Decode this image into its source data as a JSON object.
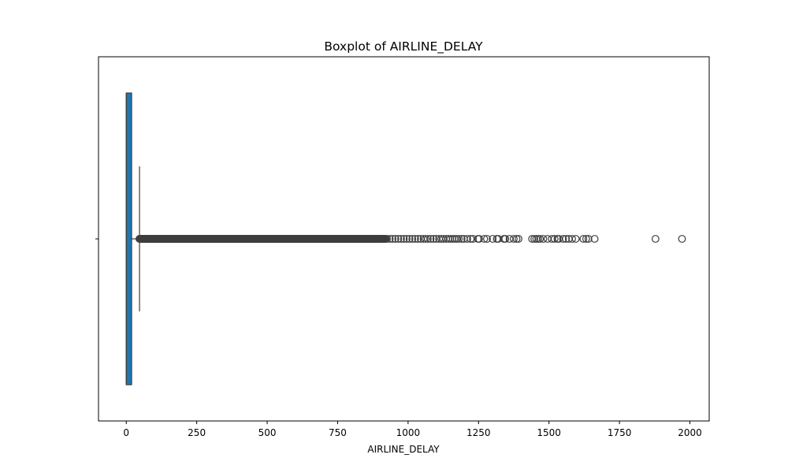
{
  "chart_data": {
    "type": "boxplot",
    "orientation": "horizontal",
    "title": "Boxplot of AIRLINE_DELAY",
    "xlabel": "AIRLINE_DELAY",
    "ylabel": "",
    "xlim": [
      -98.5,
      2068.5
    ],
    "xticks": [
      0,
      250,
      500,
      750,
      1000,
      1250,
      1500,
      1750,
      2000
    ],
    "xtick_labels": [
      "0",
      "250",
      "500",
      "750",
      "1000",
      "1250",
      "1500",
      "1750",
      "2000"
    ],
    "grid": false,
    "box": {
      "min": 0,
      "q1": 0,
      "median": 0,
      "q3": 19,
      "whisker_low": 0,
      "whisker_high": 47
    },
    "outlier_dense_range": [
      47,
      920
    ],
    "outliers": [
      925,
      935,
      945,
      955,
      965,
      975,
      985,
      995,
      1005,
      1015,
      1025,
      1035,
      1045,
      1055,
      1062,
      1070,
      1080,
      1090,
      1100,
      1110,
      1118,
      1125,
      1135,
      1143,
      1150,
      1158,
      1165,
      1172,
      1180,
      1190,
      1198,
      1210,
      1222,
      1230,
      1248,
      1252,
      1270,
      1280,
      1300,
      1315,
      1320,
      1340,
      1345,
      1360,
      1375,
      1385,
      1392,
      1440,
      1448,
      1455,
      1462,
      1468,
      1480,
      1495,
      1510,
      1520,
      1530,
      1535,
      1550,
      1560,
      1570,
      1582,
      1595,
      1622,
      1632,
      1640,
      1662,
      1878,
      1972
    ],
    "colors": {
      "box_fill": "#1f77b4",
      "edge": "#3d3d3d"
    }
  }
}
